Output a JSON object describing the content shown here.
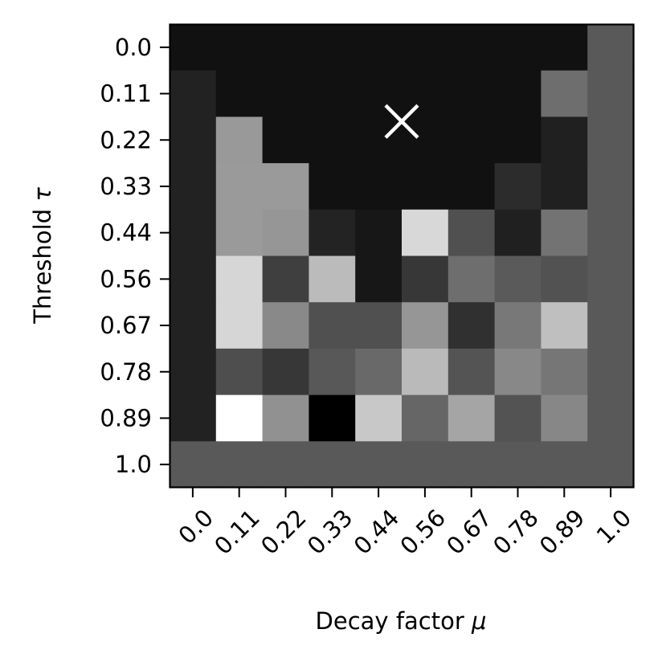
{
  "chart_data": {
    "type": "heatmap",
    "colormap": "grayscale",
    "x_categories": [
      "0.0",
      "0.11",
      "0.22",
      "0.33",
      "0.44",
      "0.56",
      "0.67",
      "0.78",
      "0.89",
      "1.0"
    ],
    "y_categories": [
      "0.0",
      "0.11",
      "0.22",
      "0.33",
      "0.44",
      "0.56",
      "0.67",
      "0.78",
      "0.89",
      "1.0"
    ],
    "xlabel_text": "Decay factor ",
    "xlabel_symbol": "μ",
    "ylabel_text": "Threshold ",
    "ylabel_symbol": "τ",
    "grid": false,
    "values": [
      [
        17,
        17,
        17,
        17,
        17,
        17,
        17,
        17,
        17,
        89
      ],
      [
        34,
        17,
        17,
        17,
        17,
        17,
        17,
        17,
        110,
        89
      ],
      [
        34,
        153,
        17,
        17,
        17,
        17,
        17,
        17,
        32,
        89
      ],
      [
        34,
        154,
        154,
        17,
        17,
        17,
        17,
        44,
        32,
        89
      ],
      [
        34,
        154,
        150,
        35,
        23,
        216,
        80,
        32,
        115,
        89
      ],
      [
        34,
        214,
        63,
        187,
        23,
        55,
        110,
        90,
        82,
        89
      ],
      [
        34,
        214,
        137,
        80,
        80,
        150,
        48,
        120,
        191,
        89
      ],
      [
        34,
        78,
        55,
        88,
        105,
        186,
        84,
        136,
        118,
        89
      ],
      [
        34,
        255,
        145,
        0,
        200,
        102,
        165,
        83,
        135,
        89
      ],
      [
        89,
        89,
        89,
        89,
        89,
        89,
        89,
        89,
        89,
        89
      ]
    ],
    "marker": {
      "symbol": "×",
      "x": "0.44",
      "y": "0.11",
      "color": "#ffffff"
    }
  }
}
